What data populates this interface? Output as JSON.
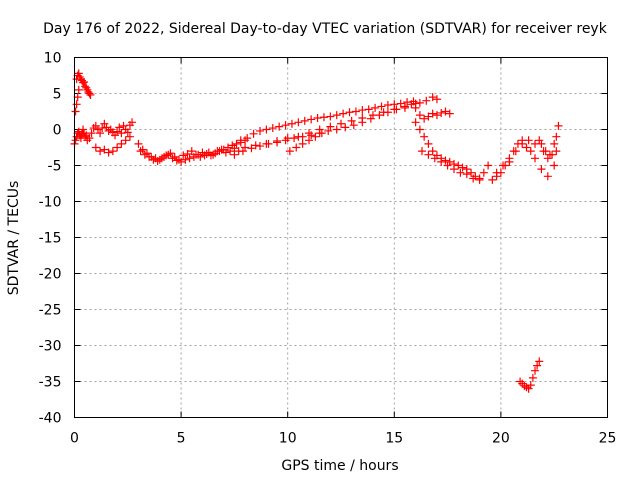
{
  "chart_data": {
    "type": "scatter",
    "title": "Day 176 of 2022, Sidereal Day-to-day VTEC variation (SDTVAR) for receiver reyk",
    "xlabel": "GPS time / hours",
    "ylabel": "SDTVAR / TECUs",
    "xlim": [
      0,
      25
    ],
    "ylim": [
      -40,
      10
    ],
    "xticks": [
      0,
      5,
      10,
      15,
      20,
      25
    ],
    "yticks": [
      10,
      5,
      0,
      -5,
      -10,
      -15,
      -20,
      -25,
      -30,
      -35,
      -40
    ],
    "grid": true,
    "marker": "+",
    "color": "#ff0000",
    "series": [
      {
        "name": "reyk",
        "x": [
          0.0,
          0.05,
          0.1,
          0.15,
          0.2,
          0.25,
          0.3,
          0.35,
          0.4,
          0.45,
          0.5,
          0.55,
          0.6,
          0.7,
          0.8,
          0.9,
          1.0,
          1.1,
          1.2,
          1.3,
          1.4,
          1.5,
          1.6,
          1.7,
          1.8,
          1.9,
          2.0,
          2.1,
          2.2,
          2.3,
          2.4,
          2.5,
          2.6,
          0.1,
          0.15,
          0.2,
          0.25,
          0.3,
          0.35,
          0.4,
          0.45,
          0.5,
          0.55,
          0.6,
          0.65,
          0.7,
          0.75,
          0.05,
          0.1,
          0.15,
          0.2,
          1.0,
          1.2,
          1.4,
          1.6,
          1.8,
          2.0,
          2.2,
          2.4,
          2.6,
          2.7,
          3.0,
          3.2,
          3.4,
          3.6,
          3.8,
          4.0,
          4.2,
          4.4,
          4.6,
          4.8,
          5.0,
          5.2,
          5.4,
          5.6,
          5.8,
          6.0,
          6.2,
          6.4,
          6.6,
          6.8,
          7.0,
          7.2,
          7.4,
          7.6,
          7.8,
          8.0,
          3.1,
          3.3,
          3.5,
          3.7,
          3.9,
          4.1,
          4.3,
          4.5,
          4.7,
          4.9,
          5.1,
          5.3,
          5.5,
          5.7,
          5.9,
          6.1,
          6.3,
          6.5,
          6.7,
          6.9,
          7.1,
          7.3,
          7.5,
          7.7,
          7.8,
          8.1,
          8.4,
          8.7,
          9.0,
          9.3,
          9.6,
          9.9,
          10.2,
          10.5,
          10.8,
          11.1,
          11.4,
          11.7,
          12.0,
          12.3,
          12.6,
          12.9,
          13.2,
          13.5,
          13.8,
          14.1,
          14.4,
          14.7,
          15.0,
          15.3,
          15.6,
          15.9,
          16.2,
          7.5,
          7.9,
          8.3,
          8.7,
          9.1,
          9.5,
          9.9,
          10.3,
          10.7,
          11.1,
          11.5,
          11.9,
          12.3,
          12.7,
          13.1,
          13.5,
          13.9,
          14.3,
          14.7,
          15.1,
          15.5,
          8.0,
          8.5,
          9.0,
          9.5,
          10.0,
          10.5,
          11.0,
          11.5,
          12.0,
          12.5,
          13.0,
          13.5,
          14.0,
          14.5,
          15.0,
          15.5,
          16.0,
          16.5,
          16.8,
          17.0,
          10.1,
          10.4,
          10.7,
          11.0,
          11.3,
          11.6,
          15.8,
          16.0,
          16.2,
          16.4,
          16.6,
          16.8,
          17.0,
          17.2,
          17.4,
          17.6,
          16.0,
          16.2,
          16.4,
          16.6,
          16.8,
          17.0,
          17.2,
          17.4,
          17.6,
          17.8,
          18.0,
          18.2,
          18.4,
          18.6,
          18.8,
          19.0,
          19.2,
          19.4,
          16.3,
          16.6,
          16.9,
          17.2,
          17.5,
          17.8,
          18.1,
          18.4,
          18.7,
          19.0,
          19.6,
          19.8,
          20.0,
          20.2,
          20.4,
          20.6,
          20.8,
          21.0,
          21.2,
          21.4,
          21.6,
          21.8,
          22.0,
          22.2,
          22.4,
          22.6,
          19.8,
          20.1,
          20.4,
          20.7,
          21.0,
          21.3,
          21.6,
          21.9,
          22.2,
          22.5,
          20.9,
          21.0,
          21.1,
          21.2,
          21.3,
          21.4,
          21.5,
          21.6,
          21.7,
          21.8,
          21.9,
          22.1,
          22.3,
          22.5,
          22.6,
          22.7
        ],
        "y": [
          -2.0,
          -1.5,
          -1.0,
          -0.5,
          -0.3,
          -0.8,
          -1.2,
          -0.6,
          0.0,
          -0.5,
          -1.0,
          -0.8,
          -1.5,
          -1.2,
          -0.5,
          0.2,
          0.5,
          0.0,
          -0.5,
          0.2,
          0.8,
          0.3,
          -0.2,
          0.0,
          -0.4,
          -0.8,
          -0.3,
          0.3,
          -0.5,
          0.5,
          0.0,
          -0.4,
          0.6,
          7.0,
          7.5,
          7.8,
          7.3,
          7.0,
          6.8,
          6.5,
          6.6,
          6.0,
          5.8,
          5.5,
          5.2,
          5.0,
          4.8,
          2.5,
          3.5,
          4.5,
          5.5,
          -2.5,
          -3.0,
          -2.8,
          -3.2,
          -3.0,
          -2.5,
          -2.0,
          -1.5,
          -1.0,
          1.0,
          -2.0,
          -2.8,
          -3.3,
          -3.8,
          -4.0,
          -4.2,
          -3.8,
          -3.5,
          -4.0,
          -4.3,
          -4.5,
          -4.2,
          -4.0,
          -3.8,
          -3.5,
          -3.2,
          -3.4,
          -3.6,
          -3.3,
          -3.0,
          -2.8,
          -2.5,
          -2.2,
          -2.0,
          -1.8,
          -1.5,
          -3.0,
          -3.5,
          -3.8,
          -4.2,
          -4.4,
          -4.0,
          -3.6,
          -3.3,
          -3.8,
          -4.2,
          -3.6,
          -3.4,
          -3.0,
          -3.5,
          -3.8,
          -3.6,
          -3.2,
          -3.5,
          -3.0,
          -2.8,
          -3.2,
          -3.0,
          -2.6,
          -3.0,
          -1.5,
          -1.2,
          -0.6,
          -0.2,
          0.0,
          0.2,
          0.4,
          0.6,
          0.8,
          1.0,
          1.2,
          1.4,
          1.6,
          1.7,
          1.8,
          2.0,
          2.2,
          2.4,
          2.5,
          2.7,
          2.8,
          3.0,
          3.2,
          3.4,
          3.5,
          3.6,
          3.8,
          3.9,
          3.7,
          -3.5,
          -3.0,
          -2.6,
          -2.3,
          -2.0,
          -1.8,
          -1.5,
          -1.2,
          -1.0,
          -0.8,
          -0.5,
          -0.2,
          0.0,
          0.3,
          0.6,
          1.0,
          1.5,
          2.0,
          2.4,
          2.8,
          3.0,
          -2.5,
          -2.2,
          -2.0,
          -1.6,
          -1.2,
          -1.0,
          -0.5,
          0.0,
          0.4,
          0.8,
          1.2,
          1.6,
          2.0,
          2.4,
          2.8,
          3.2,
          3.6,
          4.0,
          4.5,
          4.2,
          -3.0,
          -2.5,
          -2.0,
          -1.5,
          -1.0,
          -0.5,
          3.5,
          3.0,
          2.0,
          1.5,
          1.8,
          2.2,
          2.0,
          2.3,
          2.5,
          2.2,
          1.0,
          0.0,
          -1.0,
          -2.0,
          -3.0,
          -3.6,
          -4.0,
          -4.3,
          -4.5,
          -4.8,
          -5.0,
          -5.3,
          -5.5,
          -6.0,
          -6.5,
          -6.8,
          -6.0,
          -5.0,
          -3.0,
          -3.5,
          -4.0,
          -4.5,
          -5.0,
          -5.5,
          -6.0,
          -6.2,
          -6.8,
          -7.0,
          -7.0,
          -6.5,
          -6.0,
          -5.0,
          -4.0,
          -3.0,
          -2.0,
          -1.5,
          -2.5,
          -3.0,
          -2.0,
          -1.5,
          -3.0,
          -4.0,
          -3.5,
          -3.0,
          -6.0,
          -5.0,
          -4.5,
          -3.0,
          -2.0,
          -1.5,
          -4.0,
          -5.5,
          -6.5,
          -5.0,
          -35.0,
          -35.3,
          -35.6,
          -35.8,
          -36.0,
          -35.5,
          -34.5,
          -33.5,
          -32.8,
          -32.2,
          -2.0,
          -3.0,
          -3.5,
          -2.0,
          -1.0,
          0.5
        ]
      }
    ]
  }
}
